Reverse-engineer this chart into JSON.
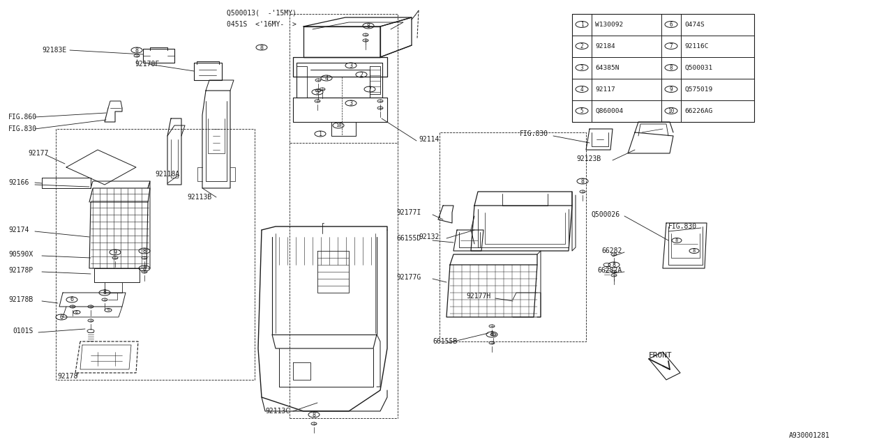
{
  "bg_color": "#ffffff",
  "line_color": "#1a1a1a",
  "fig_width": 12.8,
  "fig_height": 6.4,
  "diagram_ref": "A930001281",
  "parts_table": {
    "left": [
      {
        "num": 1,
        "code": "W130092"
      },
      {
        "num": 2,
        "code": "92184"
      },
      {
        "num": 3,
        "code": "64385N"
      },
      {
        "num": 4,
        "code": "92117"
      },
      {
        "num": 5,
        "code": "Q860004"
      }
    ],
    "right": [
      {
        "num": 6,
        "code": "0474S"
      },
      {
        "num": 7,
        "code": "92116C"
      },
      {
        "num": 8,
        "code": "Q500031"
      },
      {
        "num": 9,
        "code": "Q575019"
      },
      {
        "num": 10,
        "code": "66226AG"
      }
    ]
  }
}
